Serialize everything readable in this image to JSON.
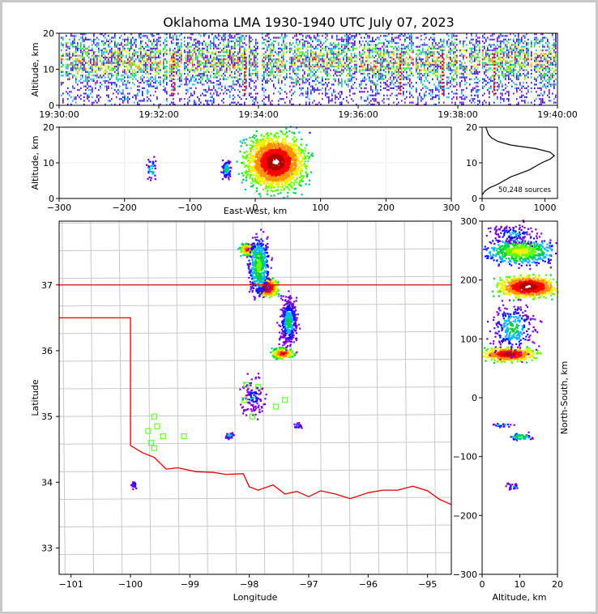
{
  "title": "Oklahoma LMA 1930-1940 UTC July 07, 2023",
  "colors": {
    "state_border": "#e00000",
    "county_lines": "#c8c8c8",
    "station_marker": "#66ff33",
    "background_frame": "#c8c8c8"
  },
  "chart_data": [
    {
      "id": "time_height",
      "type": "heatmap",
      "ylabel": "Altitude, km",
      "ylim": [
        0,
        20
      ],
      "yticks": [
        "0",
        "10",
        "20"
      ],
      "xticks": [
        "19:30:00",
        "19:32:00",
        "19:34:00",
        "19:36:00",
        "19:38:00",
        "19:40:00"
      ],
      "x_start": "19:30:00",
      "x_end": "19:40:00"
    },
    {
      "id": "east_west_altitude",
      "type": "heatmap",
      "xlabel": "East-West, km",
      "ylabel": "Altitude, km",
      "xlim": [
        -300,
        300
      ],
      "ylim": [
        0,
        20
      ],
      "xticks": [
        "−300",
        "−200",
        "−100",
        "0",
        "100",
        "200",
        "300"
      ],
      "yticks": [
        "0",
        "10",
        "20"
      ],
      "clusters": [
        {
          "x": 30,
          "alt": 10,
          "weight": "high"
        },
        {
          "x": -160,
          "alt": 8,
          "weight": "low"
        },
        {
          "x": -45,
          "alt": 8,
          "weight": "medium"
        }
      ]
    },
    {
      "id": "altitude_histogram",
      "type": "line",
      "xlim": [
        0,
        1200
      ],
      "ylim": [
        0,
        20
      ],
      "xticks": [
        "0",
        "1000"
      ],
      "yticks": [
        "0",
        "10",
        "20"
      ],
      "annotation": "50,248 sources",
      "profile": [
        [
          0,
          1
        ],
        [
          40,
          2
        ],
        [
          120,
          3
        ],
        [
          250,
          4
        ],
        [
          350,
          5
        ],
        [
          450,
          6
        ],
        [
          600,
          7
        ],
        [
          750,
          8
        ],
        [
          850,
          9
        ],
        [
          950,
          10
        ],
        [
          1080,
          11
        ],
        [
          1150,
          12
        ],
        [
          1080,
          13
        ],
        [
          850,
          14
        ],
        [
          450,
          15
        ],
        [
          250,
          16
        ],
        [
          150,
          17
        ],
        [
          100,
          18
        ],
        [
          80,
          19
        ],
        [
          60,
          20
        ]
      ]
    },
    {
      "id": "plan_view",
      "type": "scatter",
      "xlabel": "Longitude",
      "ylabel": "Latitude",
      "xlim": [
        -101.2,
        -94.6
      ],
      "ylim": [
        32.6,
        37.97
      ],
      "xticks": [
        "−101",
        "−100",
        "−99",
        "−98",
        "−97",
        "−96",
        "−95"
      ],
      "yticks": [
        "33",
        "34",
        "35",
        "36",
        "37"
      ],
      "stations": [
        [
          -98.05,
          35.48
        ],
        [
          -97.85,
          35.45
        ],
        [
          -98.08,
          35.25
        ],
        [
          -97.95,
          35.0
        ],
        [
          -97.55,
          35.15
        ],
        [
          -97.4,
          35.25
        ],
        [
          -99.6,
          35.0
        ],
        [
          -99.55,
          34.85
        ],
        [
          -99.7,
          34.78
        ],
        [
          -99.45,
          34.7
        ],
        [
          -99.65,
          34.6
        ],
        [
          -99.6,
          34.52
        ],
        [
          -99.1,
          34.7
        ]
      ]
    },
    {
      "id": "north_south_altitude",
      "type": "heatmap",
      "xlabel": "Altitude, km",
      "ylabel": "North-South, km",
      "xlim": [
        0,
        20
      ],
      "ylim": [
        -300,
        300
      ],
      "xticks": [
        "0",
        "10",
        "20"
      ],
      "yticks": [
        "−300",
        "−200",
        "−100",
        "0",
        "100",
        "200",
        "300"
      ]
    }
  ]
}
